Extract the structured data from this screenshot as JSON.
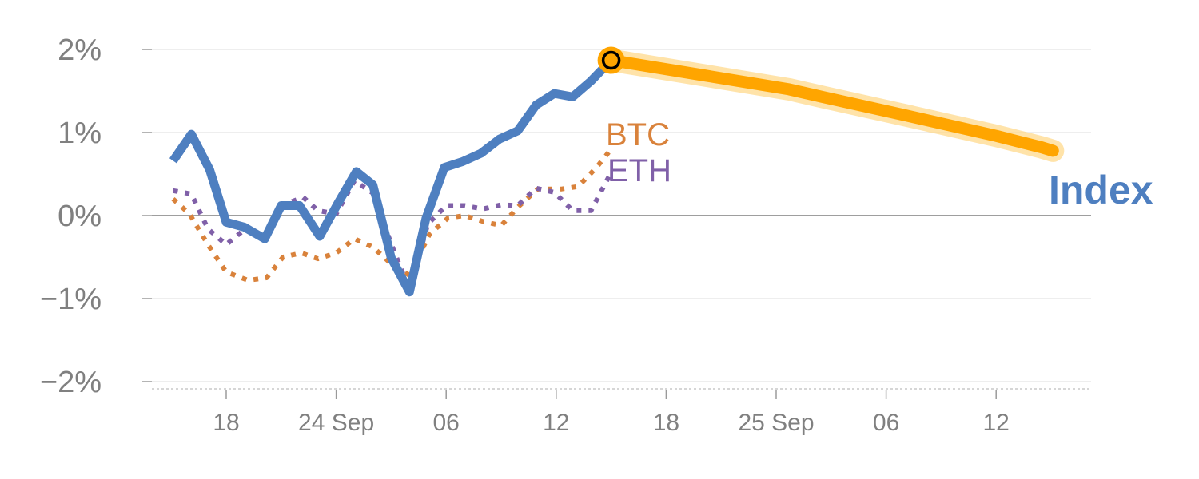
{
  "chart_data": {
    "type": "line",
    "title": "",
    "xlabel": "",
    "ylabel": "",
    "ylim": [
      -2,
      2
    ],
    "y_ticks": [
      {
        "value": 2,
        "label": "2%"
      },
      {
        "value": 1,
        "label": "1%"
      },
      {
        "value": 0,
        "label": "0%"
      },
      {
        "value": -1,
        "label": "−1%"
      },
      {
        "value": -2,
        "label": "−2%"
      }
    ],
    "x_ticks": [
      {
        "day": 18,
        "label": "18"
      },
      {
        "day": 24,
        "label": "24 Sep"
      },
      {
        "day": 30,
        "label": "06"
      },
      {
        "day": 36,
        "label": "12"
      },
      {
        "day": 42,
        "label": "18"
      },
      {
        "day": 48,
        "label": "25 Sep"
      },
      {
        "day": 54,
        "label": "06"
      },
      {
        "day": 60,
        "label": "12"
      }
    ],
    "grid": true,
    "series": [
      {
        "name": "Index",
        "color": "#4E7FC0",
        "style": "solid",
        "points": [
          [
            15.1,
            0.66
          ],
          [
            16.1,
            0.98
          ],
          [
            17.1,
            0.55
          ],
          [
            18,
            -0.08
          ],
          [
            19,
            -0.14
          ],
          [
            20.1,
            -0.28
          ],
          [
            21,
            0.12
          ],
          [
            22,
            0.12
          ],
          [
            23.1,
            -0.25
          ],
          [
            24.1,
            0.15
          ],
          [
            25.1,
            0.53
          ],
          [
            26,
            0.37
          ],
          [
            27,
            -0.51
          ],
          [
            28,
            -0.92
          ],
          [
            28.9,
            -0.03
          ],
          [
            29.9,
            0.58
          ],
          [
            30.9,
            0.65
          ],
          [
            31.9,
            0.75
          ],
          [
            32.9,
            0.92
          ],
          [
            33.9,
            1.02
          ],
          [
            34.9,
            1.33
          ],
          [
            35.9,
            1.47
          ],
          [
            36.9,
            1.43
          ],
          [
            37.9,
            1.62
          ],
          [
            39,
            1.87
          ]
        ]
      },
      {
        "name": "BTC",
        "color": "#D9823B",
        "style": "dotted",
        "points": [
          [
            15.1,
            0.2
          ],
          [
            16,
            0.02
          ],
          [
            17,
            -0.35
          ],
          [
            18,
            -0.68
          ],
          [
            19.2,
            -0.78
          ],
          [
            20.2,
            -0.75
          ],
          [
            21.1,
            -0.5
          ],
          [
            22.1,
            -0.45
          ],
          [
            23,
            -0.52
          ],
          [
            24,
            -0.45
          ],
          [
            25,
            -0.28
          ],
          [
            26,
            -0.38
          ],
          [
            27,
            -0.58
          ],
          [
            28,
            -0.72
          ],
          [
            29.1,
            -0.22
          ],
          [
            30.1,
            -0.03
          ],
          [
            31,
            0.0
          ],
          [
            32,
            -0.07
          ],
          [
            33,
            -0.12
          ],
          [
            34,
            0.12
          ],
          [
            35,
            0.32
          ],
          [
            36.3,
            0.32
          ],
          [
            37.2,
            0.35
          ],
          [
            38.2,
            0.58
          ],
          [
            39,
            0.8
          ]
        ]
      },
      {
        "name": "ETH",
        "color": "#8060A8",
        "style": "dotted",
        "points": [
          [
            15.1,
            0.3
          ],
          [
            16.1,
            0.26
          ],
          [
            17,
            -0.16
          ],
          [
            18,
            -0.35
          ],
          [
            19.1,
            -0.15
          ],
          [
            20.1,
            -0.3
          ],
          [
            21,
            0.12
          ],
          [
            22.2,
            0.22
          ],
          [
            23,
            0.06
          ],
          [
            24,
            0.02
          ],
          [
            25,
            0.42
          ],
          [
            26,
            0.27
          ],
          [
            27,
            -0.34
          ],
          [
            28,
            -0.9
          ],
          [
            29,
            -0.1
          ],
          [
            30,
            0.12
          ],
          [
            31,
            0.12
          ],
          [
            32,
            0.08
          ],
          [
            33,
            0.13
          ],
          [
            33.9,
            0.12
          ],
          [
            34.9,
            0.33
          ],
          [
            35.9,
            0.28
          ],
          [
            36.9,
            0.06
          ],
          [
            37.9,
            0.06
          ],
          [
            39,
            0.52
          ]
        ]
      }
    ],
    "forecast": {
      "color": "#FFA500",
      "halo_color": "#FFD98C",
      "points": [
        [
          39,
          1.87
        ],
        [
          44,
          1.69
        ],
        [
          48.7,
          1.52
        ],
        [
          50.5,
          1.43
        ],
        [
          55,
          1.21
        ],
        [
          60,
          0.96
        ],
        [
          62.5,
          0.82
        ],
        [
          63.1,
          0.78
        ]
      ]
    },
    "marker": {
      "day": 39,
      "value": 1.87,
      "fill": "#FFA500",
      "stroke": "#000000"
    },
    "labels": {
      "BTC": "BTC",
      "ETH": "ETH",
      "Index": "Index"
    }
  }
}
